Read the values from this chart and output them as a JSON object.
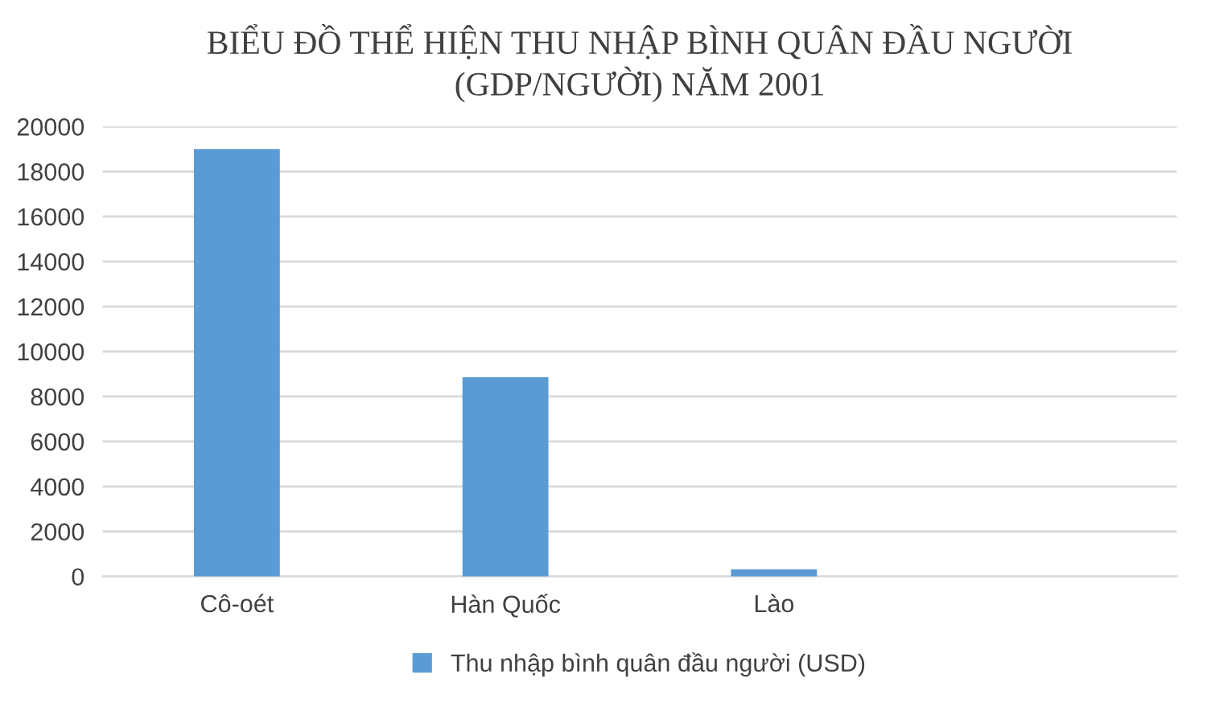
{
  "chart_data": {
    "type": "bar",
    "title": "BIỂU ĐỒ THỂ HIỆN THU NHẬP BÌNH QUÂN ĐẦU NGƯỜI\n(GDP/NGƯỜI) NĂM 2001",
    "categories": [
      "Cô-oét",
      "Hàn Quốc",
      "Lào",
      null
    ],
    "series": [
      {
        "name": "Thu nhập bình quân đầu người (USD)",
        "color": "#5b9bd5",
        "values": [
          19000,
          8860,
          320,
          null
        ]
      }
    ],
    "ylim": [
      0,
      20000
    ],
    "yticks": [
      0,
      2000,
      4000,
      6000,
      8000,
      10000,
      12000,
      14000,
      16000,
      18000,
      20000
    ],
    "grid": "y",
    "legend": "bottom"
  }
}
